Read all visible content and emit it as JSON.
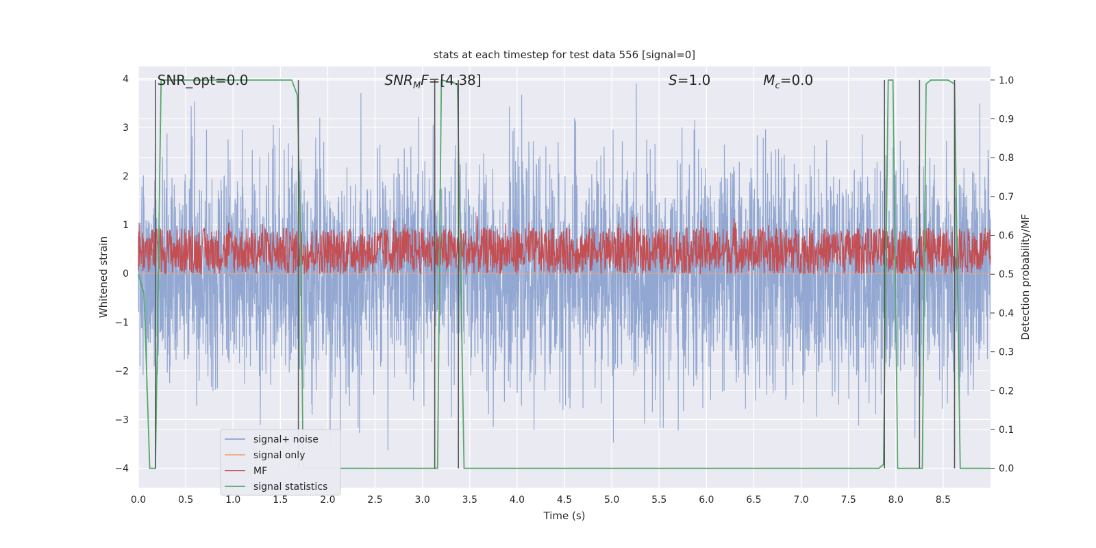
{
  "chart_data": {
    "type": "line",
    "title": "stats at each timestep for test data 556 [signal=0]",
    "xlabel": "Time (s)",
    "ylabel": "Whitened strain",
    "ylabel_right": "Detection probability/MF",
    "xlim": [
      0.0,
      9.0
    ],
    "ylim": [
      -4.4,
      4.25
    ],
    "ylim_right": [
      -0.05,
      1.035
    ],
    "x_ticks": [
      0.0,
      0.5,
      1.0,
      1.5,
      2.0,
      2.5,
      3.0,
      3.5,
      4.0,
      4.5,
      5.0,
      5.5,
      6.0,
      6.5,
      7.0,
      7.5,
      8.0,
      8.5
    ],
    "x_tick_labels": [
      "0.0",
      "0.5",
      "1.0",
      "1.5",
      "2.0",
      "2.5",
      "3.0",
      "3.5",
      "4.0",
      "4.5",
      "5.0",
      "5.5",
      "6.0",
      "6.5",
      "7.0",
      "7.5",
      "8.0",
      "8.5"
    ],
    "y_ticks": [
      -4,
      -3,
      -2,
      -1,
      0,
      1,
      2,
      3,
      4
    ],
    "y_tick_labels": [
      "−4",
      "−3",
      "−2",
      "−1",
      "0",
      "1",
      "2",
      "3",
      "4"
    ],
    "y_ticks_right": [
      0.0,
      0.1,
      0.2,
      0.3,
      0.4,
      0.5,
      0.6,
      0.7,
      0.8,
      0.9,
      1.0
    ],
    "y_tick_labels_right": [
      "0.0",
      "0.1",
      "0.2",
      "0.3",
      "0.4",
      "0.5",
      "0.6",
      "0.7",
      "0.8",
      "0.9",
      "1.0"
    ],
    "grid": true,
    "legend_position": "lower-left",
    "annotations": [
      {
        "base": "SNR_opt=0.0",
        "sub": "",
        "rest": "",
        "x": 0.2,
        "italic": false
      },
      {
        "base": "SNR",
        "sub": "M",
        "rest": "F=[4.38]",
        "x": 2.6,
        "italic": true
      },
      {
        "base": "S",
        "sub": "",
        "rest": "=1.0",
        "x": 5.6,
        "italic": true
      },
      {
        "base": "M",
        "sub": "c",
        "rest": "=0.0",
        "x": 6.6,
        "italic": true
      }
    ],
    "series": [
      {
        "name": "signal+ noise",
        "color": "#8da3cf",
        "kind": "noise",
        "amplitude": 3.0
      },
      {
        "name": "signal only",
        "color": "#f0a584",
        "kind": "flat",
        "value": 0.0
      },
      {
        "name": "MF",
        "color": "#c44e52",
        "kind": "mf",
        "band_right": [
          0.5,
          0.62
        ]
      },
      {
        "name": "signal statistics",
        "color": "#55a868",
        "kind": "line",
        "x": [
          0.0,
          0.06,
          0.12,
          0.18,
          0.24,
          1.62,
          1.68,
          1.72,
          1.74,
          3.1,
          3.16,
          3.2,
          3.37,
          3.44,
          7.82,
          7.87,
          7.92,
          7.97,
          8.02,
          8.24,
          8.28,
          8.32,
          8.37,
          8.55,
          8.62,
          8.68,
          8.75,
          9.0
        ],
        "y": [
          0.5,
          0.45,
          0.0,
          0.0,
          1.0,
          1.0,
          0.96,
          0.5,
          0.0,
          0.0,
          0.0,
          1.0,
          0.99,
          0.0,
          0.0,
          0.01,
          1.0,
          1.0,
          0.0,
          0.0,
          0.0,
          0.99,
          1.0,
          1.0,
          0.99,
          0.0,
          0.0,
          0.0
        ]
      }
    ],
    "vertical_lines": [
      0.18,
      1.69,
      3.13,
      3.38,
      7.88,
      8.25,
      8.62
    ],
    "vertical_line_range_right": [
      0.0,
      1.0
    ],
    "vertical_line_color": "#555555"
  }
}
